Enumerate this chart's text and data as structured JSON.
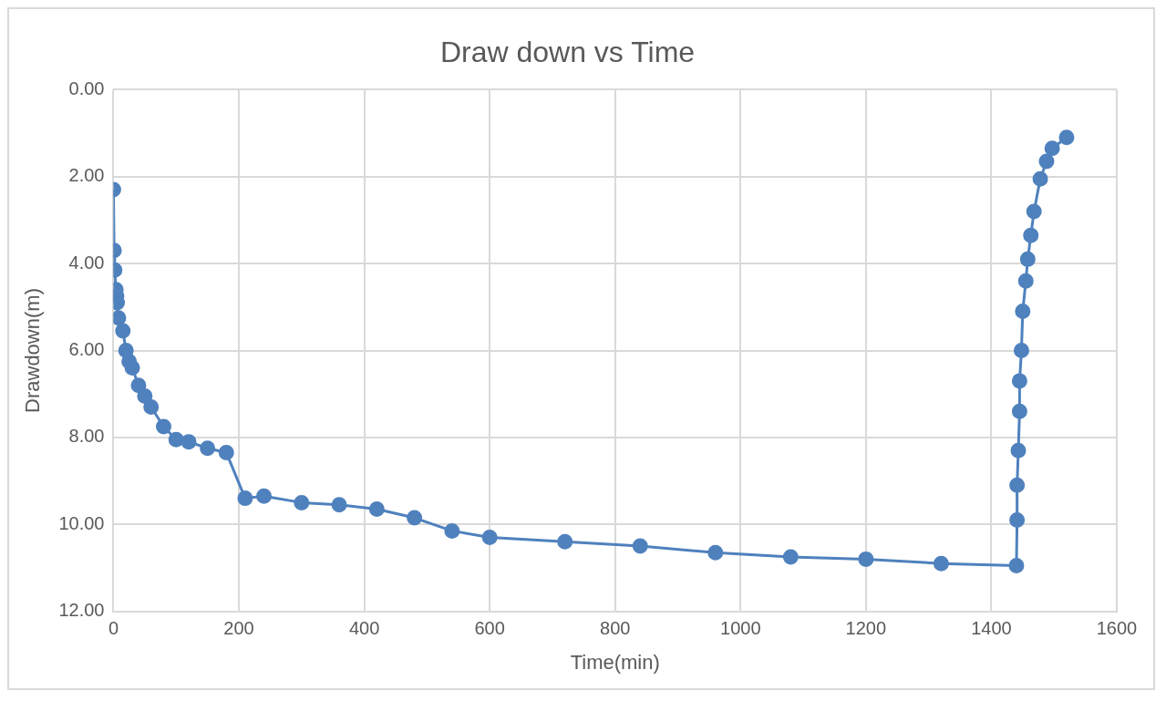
{
  "chart_data": {
    "type": "line",
    "title": "Draw down vs Time",
    "xlabel": "Time(min)",
    "ylabel": "Drawdown(m)",
    "x": [
      0,
      1,
      2,
      4,
      5,
      6,
      8,
      15,
      20,
      25,
      30,
      40,
      50,
      60,
      80,
      100,
      120,
      150,
      180,
      210,
      240,
      300,
      360,
      420,
      480,
      540,
      600,
      720,
      840,
      960,
      1080,
      1200,
      1320,
      1440,
      1441,
      1441,
      1443,
      1445,
      1445,
      1448,
      1450,
      1455,
      1458,
      1463,
      1468,
      1478,
      1488,
      1497,
      1520
    ],
    "series": [
      {
        "color": "#4f81bd",
        "values": [
          2.3,
          3.7,
          4.15,
          4.6,
          4.75,
          4.9,
          5.25,
          5.55,
          6.0,
          6.25,
          6.4,
          6.8,
          7.05,
          7.3,
          7.75,
          8.05,
          8.1,
          8.25,
          8.35,
          9.4,
          9.35,
          9.5,
          9.55,
          9.65,
          9.85,
          10.15,
          10.3,
          10.4,
          10.5,
          10.65,
          10.75,
          10.8,
          10.9,
          10.95,
          9.9,
          9.1,
          8.3,
          7.4,
          6.7,
          6.0,
          5.1,
          4.4,
          3.9,
          3.35,
          2.8,
          2.05,
          1.65,
          1.35,
          1.1
        ]
      }
    ],
    "xlim": [
      0,
      1600
    ],
    "xticks": [
      0,
      200,
      400,
      600,
      800,
      1000,
      1200,
      1400,
      1600
    ],
    "ylim": [
      12,
      0
    ],
    "yticks": [
      {
        "value": 0,
        "label": "0.00"
      },
      {
        "value": 2,
        "label": "2.00"
      },
      {
        "value": 4,
        "label": "4.00"
      },
      {
        "value": 6,
        "label": "6.00"
      },
      {
        "value": 8,
        "label": "8.00"
      },
      {
        "value": 10,
        "label": "10.00"
      },
      {
        "value": 12,
        "label": "12.00"
      }
    ],
    "grid": true,
    "legend": false,
    "marker": "circle",
    "line_style": "solid"
  }
}
